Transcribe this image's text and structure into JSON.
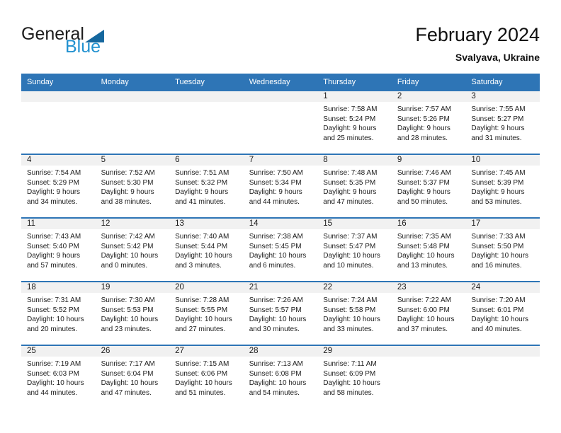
{
  "logo": {
    "text_black": "General",
    "text_blue": "Blue"
  },
  "header": {
    "title": "February 2024",
    "subtitle": "Svalyava, Ukraine"
  },
  "colors": {
    "header_blue": "#2e75b6",
    "band_gray": "#f1f1f1",
    "logo_blue_text": "#2191d0",
    "logo_triangle_blue": "#15679e"
  },
  "weekdays": [
    "Sunday",
    "Monday",
    "Tuesday",
    "Wednesday",
    "Thursday",
    "Friday",
    "Saturday"
  ],
  "weeks": [
    [
      {
        "day": ""
      },
      {
        "day": ""
      },
      {
        "day": ""
      },
      {
        "day": ""
      },
      {
        "day": "1",
        "sunrise": "Sunrise: 7:58 AM",
        "sunset": "Sunset: 5:24 PM",
        "daylight1": "Daylight: 9 hours",
        "daylight2": "and 25 minutes."
      },
      {
        "day": "2",
        "sunrise": "Sunrise: 7:57 AM",
        "sunset": "Sunset: 5:26 PM",
        "daylight1": "Daylight: 9 hours",
        "daylight2": "and 28 minutes."
      },
      {
        "day": "3",
        "sunrise": "Sunrise: 7:55 AM",
        "sunset": "Sunset: 5:27 PM",
        "daylight1": "Daylight: 9 hours",
        "daylight2": "and 31 minutes."
      }
    ],
    [
      {
        "day": "4",
        "sunrise": "Sunrise: 7:54 AM",
        "sunset": "Sunset: 5:29 PM",
        "daylight1": "Daylight: 9 hours",
        "daylight2": "and 34 minutes."
      },
      {
        "day": "5",
        "sunrise": "Sunrise: 7:52 AM",
        "sunset": "Sunset: 5:30 PM",
        "daylight1": "Daylight: 9 hours",
        "daylight2": "and 38 minutes."
      },
      {
        "day": "6",
        "sunrise": "Sunrise: 7:51 AM",
        "sunset": "Sunset: 5:32 PM",
        "daylight1": "Daylight: 9 hours",
        "daylight2": "and 41 minutes."
      },
      {
        "day": "7",
        "sunrise": "Sunrise: 7:50 AM",
        "sunset": "Sunset: 5:34 PM",
        "daylight1": "Daylight: 9 hours",
        "daylight2": "and 44 minutes."
      },
      {
        "day": "8",
        "sunrise": "Sunrise: 7:48 AM",
        "sunset": "Sunset: 5:35 PM",
        "daylight1": "Daylight: 9 hours",
        "daylight2": "and 47 minutes."
      },
      {
        "day": "9",
        "sunrise": "Sunrise: 7:46 AM",
        "sunset": "Sunset: 5:37 PM",
        "daylight1": "Daylight: 9 hours",
        "daylight2": "and 50 minutes."
      },
      {
        "day": "10",
        "sunrise": "Sunrise: 7:45 AM",
        "sunset": "Sunset: 5:39 PM",
        "daylight1": "Daylight: 9 hours",
        "daylight2": "and 53 minutes."
      }
    ],
    [
      {
        "day": "11",
        "sunrise": "Sunrise: 7:43 AM",
        "sunset": "Sunset: 5:40 PM",
        "daylight1": "Daylight: 9 hours",
        "daylight2": "and 57 minutes."
      },
      {
        "day": "12",
        "sunrise": "Sunrise: 7:42 AM",
        "sunset": "Sunset: 5:42 PM",
        "daylight1": "Daylight: 10 hours",
        "daylight2": "and 0 minutes."
      },
      {
        "day": "13",
        "sunrise": "Sunrise: 7:40 AM",
        "sunset": "Sunset: 5:44 PM",
        "daylight1": "Daylight: 10 hours",
        "daylight2": "and 3 minutes."
      },
      {
        "day": "14",
        "sunrise": "Sunrise: 7:38 AM",
        "sunset": "Sunset: 5:45 PM",
        "daylight1": "Daylight: 10 hours",
        "daylight2": "and 6 minutes."
      },
      {
        "day": "15",
        "sunrise": "Sunrise: 7:37 AM",
        "sunset": "Sunset: 5:47 PM",
        "daylight1": "Daylight: 10 hours",
        "daylight2": "and 10 minutes."
      },
      {
        "day": "16",
        "sunrise": "Sunrise: 7:35 AM",
        "sunset": "Sunset: 5:48 PM",
        "daylight1": "Daylight: 10 hours",
        "daylight2": "and 13 minutes."
      },
      {
        "day": "17",
        "sunrise": "Sunrise: 7:33 AM",
        "sunset": "Sunset: 5:50 PM",
        "daylight1": "Daylight: 10 hours",
        "daylight2": "and 16 minutes."
      }
    ],
    [
      {
        "day": "18",
        "sunrise": "Sunrise: 7:31 AM",
        "sunset": "Sunset: 5:52 PM",
        "daylight1": "Daylight: 10 hours",
        "daylight2": "and 20 minutes."
      },
      {
        "day": "19",
        "sunrise": "Sunrise: 7:30 AM",
        "sunset": "Sunset: 5:53 PM",
        "daylight1": "Daylight: 10 hours",
        "daylight2": "and 23 minutes."
      },
      {
        "day": "20",
        "sunrise": "Sunrise: 7:28 AM",
        "sunset": "Sunset: 5:55 PM",
        "daylight1": "Daylight: 10 hours",
        "daylight2": "and 27 minutes."
      },
      {
        "day": "21",
        "sunrise": "Sunrise: 7:26 AM",
        "sunset": "Sunset: 5:57 PM",
        "daylight1": "Daylight: 10 hours",
        "daylight2": "and 30 minutes."
      },
      {
        "day": "22",
        "sunrise": "Sunrise: 7:24 AM",
        "sunset": "Sunset: 5:58 PM",
        "daylight1": "Daylight: 10 hours",
        "daylight2": "and 33 minutes."
      },
      {
        "day": "23",
        "sunrise": "Sunrise: 7:22 AM",
        "sunset": "Sunset: 6:00 PM",
        "daylight1": "Daylight: 10 hours",
        "daylight2": "and 37 minutes."
      },
      {
        "day": "24",
        "sunrise": "Sunrise: 7:20 AM",
        "sunset": "Sunset: 6:01 PM",
        "daylight1": "Daylight: 10 hours",
        "daylight2": "and 40 minutes."
      }
    ],
    [
      {
        "day": "25",
        "sunrise": "Sunrise: 7:19 AM",
        "sunset": "Sunset: 6:03 PM",
        "daylight1": "Daylight: 10 hours",
        "daylight2": "and 44 minutes."
      },
      {
        "day": "26",
        "sunrise": "Sunrise: 7:17 AM",
        "sunset": "Sunset: 6:04 PM",
        "daylight1": "Daylight: 10 hours",
        "daylight2": "and 47 minutes."
      },
      {
        "day": "27",
        "sunrise": "Sunrise: 7:15 AM",
        "sunset": "Sunset: 6:06 PM",
        "daylight1": "Daylight: 10 hours",
        "daylight2": "and 51 minutes."
      },
      {
        "day": "28",
        "sunrise": "Sunrise: 7:13 AM",
        "sunset": "Sunset: 6:08 PM",
        "daylight1": "Daylight: 10 hours",
        "daylight2": "and 54 minutes."
      },
      {
        "day": "29",
        "sunrise": "Sunrise: 7:11 AM",
        "sunset": "Sunset: 6:09 PM",
        "daylight1": "Daylight: 10 hours",
        "daylight2": "and 58 minutes."
      },
      {
        "day": ""
      },
      {
        "day": ""
      }
    ]
  ]
}
